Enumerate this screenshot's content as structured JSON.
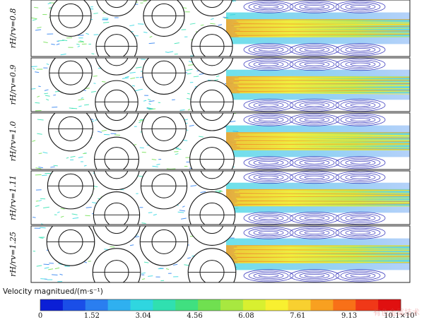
{
  "figure": {
    "panels": [
      {
        "label": "rH/rv=0.8"
      },
      {
        "label": "rH/rv=0.9"
      },
      {
        "label": "rH/rv=1.0"
      },
      {
        "label": "rH/rv=1.11"
      },
      {
        "label": "rH/rv=1.25"
      }
    ],
    "colorbar": {
      "title": "Velocity magnitued/(m·s⁻¹)",
      "ticks": [
        "0",
        "1.52",
        "3.04",
        "4.56",
        "6.08",
        "7.61",
        "9.13",
        "10.1×10¹"
      ],
      "colors": [
        "#0b1fd6",
        "#1a4ee8",
        "#2a7ef0",
        "#2fb0f0",
        "#2fd6e0",
        "#30e0b0",
        "#40e080",
        "#70e050",
        "#a8e840",
        "#d8f030",
        "#f8f030",
        "#f8d030",
        "#f8a020",
        "#f87018",
        "#f03818",
        "#e01010"
      ]
    },
    "flow_colors": {
      "background": "#ffffff",
      "low": "#2a2ab8",
      "mid": "#2fd6e0",
      "green": "#70e050",
      "high": "#f8f030",
      "orange": "#f8a020"
    },
    "watermark": "有色金属技术"
  }
}
